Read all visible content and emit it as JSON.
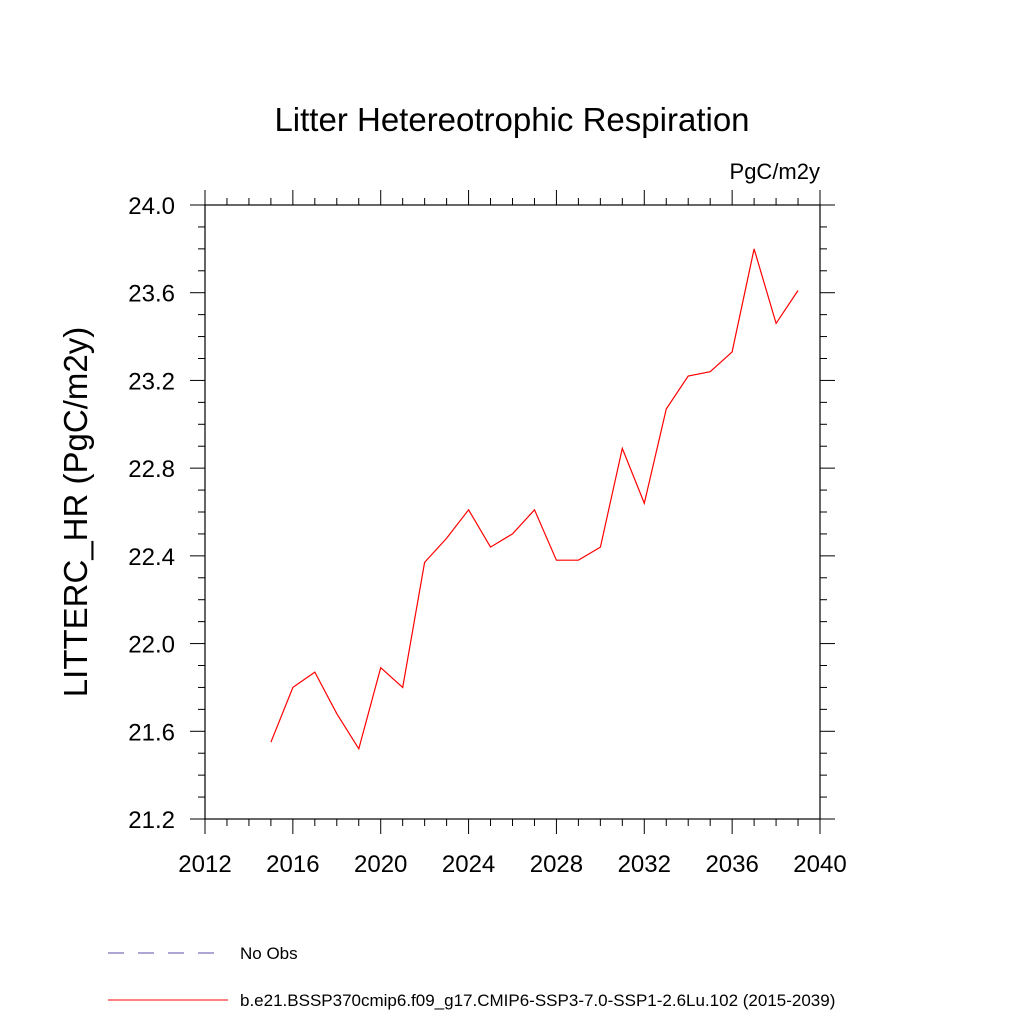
{
  "chart_data": {
    "type": "line",
    "title": "Litter Hetereotrophic Respiration",
    "units_label": "PgC/m2y",
    "ylabel": "LITTERC_HR  (PgC/m2y)",
    "xlabel": "",
    "xlim": [
      2012,
      2040
    ],
    "ylim": [
      21.2,
      24.0
    ],
    "x_ticks": [
      "2012",
      "2016",
      "2020",
      "2024",
      "2028",
      "2032",
      "2036",
      "2040"
    ],
    "y_ticks": [
      "21.2",
      "21.6",
      "22.0",
      "22.4",
      "22.8",
      "23.2",
      "23.6",
      "24.0"
    ],
    "grid": false,
    "legend_position": "bottom",
    "series": [
      {
        "name": "No Obs",
        "color": "#5a4fa6",
        "dash": "dashed",
        "x": [],
        "y": []
      },
      {
        "name": "b.e21.BSSP370cmip6.f09_g17.CMIP6-SSP3-7.0-SSP1-2.6Lu.102 (2015-2039)",
        "color": "#ff0000",
        "dash": "solid",
        "x": [
          2015,
          2016,
          2017,
          2018,
          2019,
          2020,
          2021,
          2022,
          2023,
          2024,
          2025,
          2026,
          2027,
          2028,
          2029,
          2030,
          2031,
          2032,
          2033,
          2034,
          2035,
          2036,
          2037,
          2038,
          2039
        ],
        "y": [
          21.55,
          21.8,
          21.87,
          21.68,
          21.52,
          21.89,
          21.8,
          22.37,
          22.48,
          22.61,
          22.44,
          22.5,
          22.61,
          22.38,
          22.38,
          22.44,
          22.89,
          22.64,
          23.07,
          23.22,
          23.24,
          23.33,
          23.8,
          23.46,
          23.61
        ]
      }
    ]
  }
}
